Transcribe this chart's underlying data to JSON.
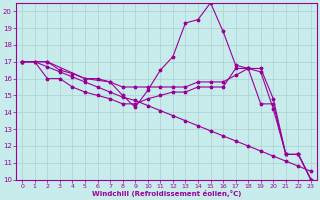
{
  "xlabel": "Windchill (Refroidissement éolien,°C)",
  "bg_color": "#c8ecec",
  "grid_color": "#aad0d0",
  "line_color": "#990099",
  "xlim": [
    -0.5,
    23.5
  ],
  "ylim": [
    10,
    20.5
  ],
  "xticks": [
    0,
    1,
    2,
    3,
    4,
    5,
    6,
    7,
    8,
    9,
    10,
    11,
    12,
    13,
    14,
    15,
    16,
    17,
    18,
    19,
    20,
    21,
    22,
    23
  ],
  "yticks": [
    10,
    11,
    12,
    13,
    14,
    15,
    16,
    17,
    18,
    19,
    20
  ],
  "lines": [
    {
      "x": [
        0,
        1,
        2,
        3,
        4,
        5,
        6,
        7,
        8,
        9,
        10,
        11,
        12,
        13,
        14,
        15,
        16,
        17,
        18,
        19,
        20,
        21,
        22,
        23
      ],
      "y": [
        17,
        17,
        16.7,
        16.4,
        16.1,
        15.8,
        15.5,
        15.2,
        14.9,
        14.7,
        14.4,
        14.1,
        13.8,
        13.5,
        13.2,
        12.9,
        12.6,
        12.3,
        12.0,
        11.7,
        11.4,
        11.1,
        10.8,
        10.5
      ]
    },
    {
      "x": [
        0,
        2,
        5,
        7,
        8,
        9,
        10,
        11,
        12,
        13,
        14,
        15,
        16,
        17,
        18,
        19,
        20,
        21,
        22,
        23
      ],
      "y": [
        17,
        17,
        16,
        15.8,
        15,
        14.3,
        15.3,
        16.5,
        17.3,
        19.3,
        19.5,
        20.5,
        18.8,
        16.8,
        16.6,
        16.6,
        14.8,
        11.5,
        11.5,
        10
      ]
    },
    {
      "x": [
        0,
        1,
        2,
        3,
        4,
        5,
        6,
        7,
        8,
        9,
        10,
        11,
        12,
        13,
        14,
        15,
        16,
        17,
        18,
        19,
        20,
        21,
        22,
        23
      ],
      "y": [
        17,
        17,
        16,
        16,
        15.5,
        15.2,
        15.0,
        14.8,
        14.5,
        14.5,
        14.8,
        15.0,
        15.2,
        15.2,
        15.5,
        15.5,
        15.5,
        16.6,
        16.6,
        14.5,
        14.5,
        11.5,
        11.5,
        10
      ]
    },
    {
      "x": [
        0,
        2,
        3,
        4,
        5,
        6,
        7,
        8,
        9,
        10,
        11,
        12,
        13,
        14,
        15,
        16,
        17,
        18,
        19,
        20,
        21,
        22,
        23
      ],
      "y": [
        17,
        17,
        16.5,
        16.3,
        16.0,
        16.0,
        15.8,
        15.5,
        15.5,
        15.5,
        15.5,
        15.5,
        15.5,
        15.8,
        15.8,
        15.8,
        16.2,
        16.6,
        16.4,
        14.2,
        11.5,
        11.5,
        10
      ]
    }
  ]
}
